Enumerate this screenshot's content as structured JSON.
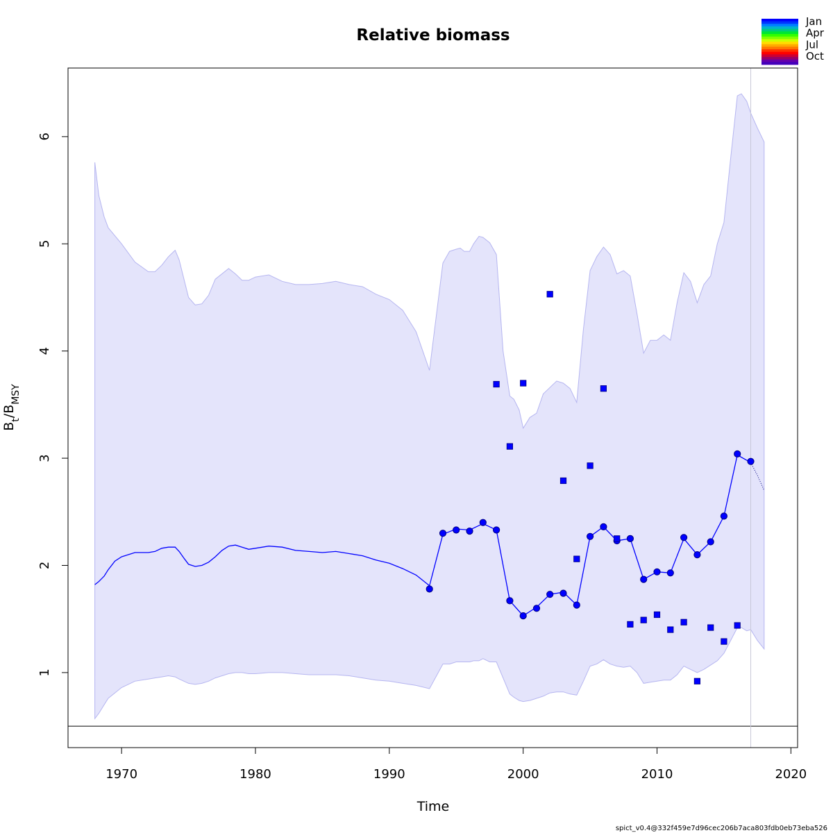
{
  "chart_data": {
    "type": "line",
    "title": "Relative biomass",
    "xlabel": "Time",
    "ylabel": {
      "main": "B",
      "sub1": "t",
      "sep": "/B",
      "sub2": "MSY"
    },
    "xlim": [
      1966,
      2020.5
    ],
    "ylim": [
      0.3,
      6.64
    ],
    "xticks": [
      1970,
      1980,
      1990,
      2000,
      2010,
      2020
    ],
    "yticks": [
      1,
      2,
      3,
      4,
      5,
      6
    ],
    "grid": false,
    "reference_line_y": 0.5,
    "vertical_line_x": 2017,
    "legend": {
      "position": "top-right",
      "entries": [
        "Jan",
        "Apr",
        "Jul",
        "Oct"
      ],
      "colors": [
        "#0000ff",
        "#0033ff",
        "#0080ff",
        "#00b3cc",
        "#00cc80",
        "#00e633",
        "#33ff00",
        "#80ff00",
        "#ccff00",
        "#ffdd00",
        "#ffaa00",
        "#ff7700",
        "#ff3300",
        "#ff0000",
        "#cc0033",
        "#990066",
        "#6600aa",
        "#4400bb"
      ]
    },
    "series": [
      {
        "name": "",
        "role": "confidence-band",
        "color": "#e4e4fb",
        "x": [
          1968,
          1968.3,
          1968.7,
          1969,
          1970,
          1971,
          1972,
          1972.5,
          1973,
          1973.5,
          1974,
          1974.3,
          1975,
          1975.5,
          1976,
          1976.5,
          1977,
          1978,
          1978.5,
          1979,
          1979.5,
          1980,
          1981,
          1982,
          1983,
          1984,
          1985,
          1986,
          1987,
          1988,
          1989,
          1990,
          1991,
          1992,
          1993,
          1994,
          1994.5,
          1995,
          1995.3,
          1995.6,
          1996,
          1996.3,
          1996.7,
          1997,
          1997.5,
          1998,
          1998.5,
          1999,
          1999.3,
          1999.7,
          2000,
          2000.5,
          2001,
          2001.5,
          2002,
          2002.5,
          2003,
          2003.5,
          2004,
          2004.5,
          2005,
          2005.5,
          2006,
          2006.5,
          2007,
          2007.5,
          2008,
          2008.5,
          2009,
          2009.5,
          2010,
          2010.5,
          2011,
          2011.5,
          2012,
          2012.5,
          2013,
          2013.5,
          2014,
          2014.5,
          2015,
          2015.5,
          2016,
          2016.3,
          2016.7,
          2017,
          2017.5,
          2018
        ],
        "upper": [
          5.76,
          5.45,
          5.25,
          5.15,
          5.0,
          4.83,
          4.74,
          4.74,
          4.8,
          4.88,
          4.94,
          4.85,
          4.5,
          4.43,
          4.44,
          4.52,
          4.67,
          4.77,
          4.72,
          4.66,
          4.66,
          4.69,
          4.71,
          4.65,
          4.62,
          4.62,
          4.63,
          4.65,
          4.62,
          4.6,
          4.53,
          4.48,
          4.38,
          4.18,
          3.82,
          4.82,
          4.93,
          4.95,
          4.96,
          4.93,
          4.93,
          5.0,
          5.07,
          5.06,
          5.01,
          4.9,
          4.0,
          3.58,
          3.55,
          3.45,
          3.28,
          3.38,
          3.42,
          3.6,
          3.66,
          3.72,
          3.7,
          3.65,
          3.52,
          4.2,
          4.75,
          4.88,
          4.97,
          4.9,
          4.72,
          4.75,
          4.7,
          4.35,
          3.98,
          4.1,
          4.1,
          4.15,
          4.1,
          4.45,
          4.73,
          4.65,
          4.45,
          4.62,
          4.7,
          5.0,
          5.2,
          5.8,
          6.38,
          6.4,
          6.33,
          6.22,
          6.08,
          5.95
        ],
        "lower": [
          0.57,
          0.62,
          0.7,
          0.76,
          0.86,
          0.92,
          0.94,
          0.95,
          0.96,
          0.97,
          0.96,
          0.94,
          0.9,
          0.89,
          0.9,
          0.92,
          0.95,
          0.99,
          1.0,
          1.0,
          0.99,
          0.99,
          1.0,
          1.0,
          0.99,
          0.98,
          0.98,
          0.98,
          0.97,
          0.95,
          0.93,
          0.92,
          0.9,
          0.88,
          0.85,
          1.08,
          1.08,
          1.1,
          1.1,
          1.1,
          1.1,
          1.11,
          1.11,
          1.13,
          1.1,
          1.1,
          0.95,
          0.8,
          0.77,
          0.74,
          0.73,
          0.74,
          0.76,
          0.78,
          0.81,
          0.82,
          0.82,
          0.8,
          0.79,
          0.92,
          1.06,
          1.08,
          1.12,
          1.08,
          1.06,
          1.05,
          1.06,
          1.0,
          0.9,
          0.91,
          0.92,
          0.93,
          0.93,
          0.98,
          1.06,
          1.03,
          1.0,
          1.03,
          1.07,
          1.11,
          1.18,
          1.3,
          1.42,
          1.42,
          1.39,
          1.4,
          1.3,
          1.22
        ]
      },
      {
        "name": "",
        "role": "estimate",
        "color": "#0000ff",
        "x": [
          1968,
          1968.3,
          1968.7,
          1969,
          1969.5,
          1970,
          1971,
          1972,
          1972.5,
          1973,
          1973.5,
          1974,
          1974.3,
          1974.7,
          1975,
          1975.5,
          1976,
          1976.5,
          1977,
          1977.5,
          1978,
          1978.5,
          1979,
          1979.5,
          1980,
          1981,
          1982,
          1983,
          1984,
          1985,
          1986,
          1987,
          1988,
          1989,
          1990,
          1991,
          1992,
          1993,
          1994,
          1995,
          1996,
          1997,
          1998,
          1999,
          2000,
          2001,
          2002,
          2003,
          2004,
          2005,
          2006,
          2007,
          2008,
          2009,
          2010,
          2011,
          2012,
          2013,
          2014,
          2015,
          2016,
          2017
        ],
        "values": [
          1.82,
          1.85,
          1.9,
          1.96,
          2.04,
          2.08,
          2.12,
          2.12,
          2.13,
          2.16,
          2.17,
          2.17,
          2.13,
          2.06,
          2.01,
          1.99,
          2.0,
          2.03,
          2.08,
          2.14,
          2.18,
          2.19,
          2.17,
          2.15,
          2.16,
          2.18,
          2.17,
          2.14,
          2.13,
          2.12,
          2.13,
          2.11,
          2.09,
          2.05,
          2.02,
          1.97,
          1.91,
          1.81,
          2.29,
          2.34,
          2.33,
          2.39,
          2.33,
          1.67,
          1.53,
          1.61,
          1.73,
          1.75,
          1.63,
          2.27,
          2.36,
          2.23,
          2.25,
          1.87,
          1.94,
          1.93,
          2.25,
          2.1,
          2.22,
          2.46,
          3.03,
          2.96
        ]
      },
      {
        "name": "",
        "role": "forecast",
        "color": "#0000ff",
        "x": [
          2017,
          2017.5,
          2018
        ],
        "values": [
          2.96,
          2.84,
          2.7
        ]
      },
      {
        "name": "",
        "role": "estimate-points",
        "color": "#0000ff",
        "x": [
          1993,
          1994,
          1995,
          1996,
          1997,
          1998,
          1999,
          2000,
          2001,
          2002,
          2003,
          2004,
          2005,
          2006,
          2007,
          2008,
          2009,
          2010,
          2011,
          2012,
          2013,
          2014,
          2015,
          2016,
          2017
        ],
        "values": [
          1.78,
          2.3,
          2.33,
          2.32,
          2.4,
          2.33,
          1.67,
          1.53,
          1.6,
          1.73,
          1.74,
          1.63,
          2.27,
          2.36,
          2.23,
          2.25,
          1.87,
          1.94,
          1.93,
          2.26,
          2.1,
          2.22,
          2.46,
          3.04,
          2.97
        ]
      },
      {
        "name": "",
        "role": "index-observations",
        "color": "#0000ff",
        "x": [
          1998,
          1999,
          2000,
          2002,
          2003,
          2004,
          2005,
          2006,
          2007,
          2008,
          2009,
          2010,
          2011,
          2012,
          2013,
          2014,
          2015,
          2016
        ],
        "values": [
          3.69,
          3.11,
          3.7,
          4.53,
          2.79,
          2.06,
          2.93,
          3.65,
          2.25,
          1.45,
          1.49,
          1.54,
          1.4,
          1.47,
          0.92,
          1.42,
          1.29,
          1.44
        ]
      }
    ]
  },
  "footer_text": "spict_v0.4@332f459e7d96cec206b7aca803fdb0eb73eba526"
}
